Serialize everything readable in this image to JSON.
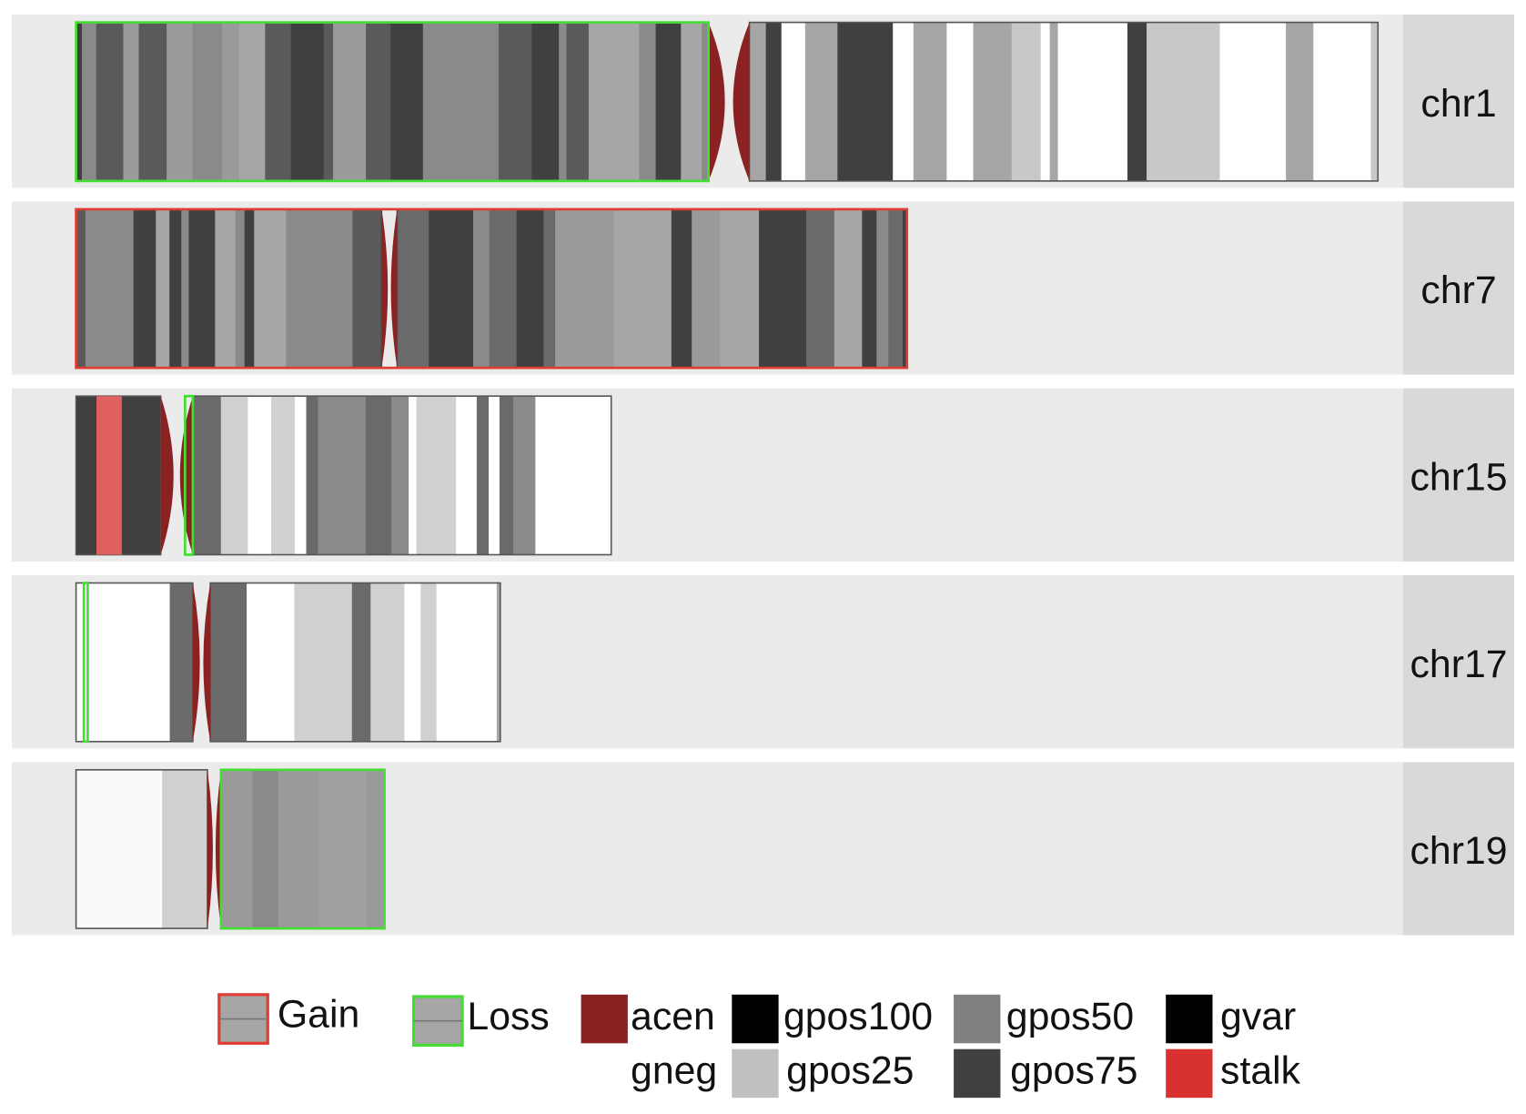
{
  "panels": [
    {
      "label": "chr1"
    },
    {
      "label": "chr7"
    },
    {
      "label": "chr15"
    },
    {
      "label": "chr17"
    },
    {
      "label": "chr19"
    }
  ],
  "legend": {
    "items": [
      {
        "label": "Gain",
        "color": "#e03c31",
        "kind": "outline"
      },
      {
        "label": "Loss",
        "color": "#44dd33",
        "kind": "outline"
      },
      {
        "label": "acen",
        "color": "#8b2222"
      },
      {
        "label": "gpos100",
        "color": "#000000"
      },
      {
        "label": "gpos50",
        "color": "#808080"
      },
      {
        "label": "gvar",
        "color": "#000000"
      },
      {
        "label": "gneg",
        "color": "#ffffff"
      },
      {
        "label": "gpos25",
        "color": "#c0c0c0"
      },
      {
        "label": "gpos75",
        "color": "#404040"
      },
      {
        "label": "stalk",
        "color": "#d93030"
      }
    ]
  }
}
